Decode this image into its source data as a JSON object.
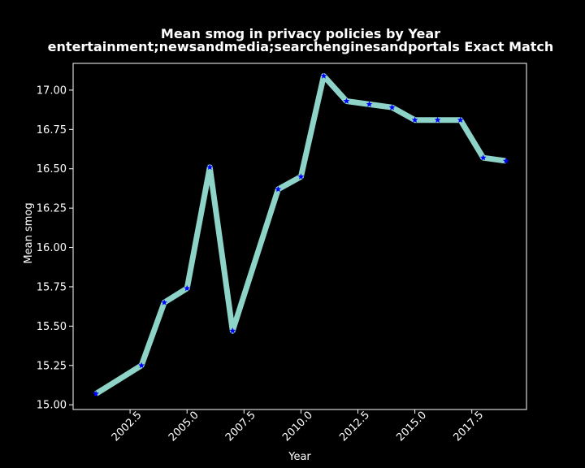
{
  "chart_data": {
    "type": "line",
    "title_line1": "Mean smog in privacy policies by Year",
    "title_line2": "entertainment;newsandmedia;searchenginesandportals Exact Match",
    "xlabel": "Year",
    "ylabel": "Mean smog",
    "x": [
      2001,
      2003,
      2004,
      2005,
      2006,
      2007,
      2009,
      2010,
      2011,
      2012,
      2013,
      2014,
      2015,
      2016,
      2017,
      2018,
      2019
    ],
    "y": [
      15.07,
      15.25,
      15.65,
      15.74,
      16.51,
      15.47,
      16.37,
      16.45,
      17.09,
      16.93,
      16.91,
      16.89,
      16.81,
      16.81,
      16.81,
      16.57,
      16.55
    ],
    "xlim": [
      2000.0,
      2019.9
    ],
    "ylim": [
      14.97,
      17.17
    ],
    "xticks": [
      2002.5,
      2005.0,
      2007.5,
      2010.0,
      2012.5,
      2015.0,
      2017.5
    ],
    "xtick_labels": [
      "2002.5",
      "2005.0",
      "2007.5",
      "2010.0",
      "2012.5",
      "2015.0",
      "2017.5"
    ],
    "yticks": [
      15.0,
      15.25,
      15.5,
      15.75,
      16.0,
      16.25,
      16.5,
      16.75,
      17.0
    ],
    "ytick_labels": [
      "15.00",
      "15.25",
      "15.50",
      "15.75",
      "16.00",
      "16.25",
      "16.50",
      "16.75",
      "17.00"
    ],
    "grid": false,
    "line_color": "#8dd3c7",
    "marker_color": "#0000ff",
    "marker": "star",
    "background": "#000000",
    "axes_color": "#ffffff"
  }
}
